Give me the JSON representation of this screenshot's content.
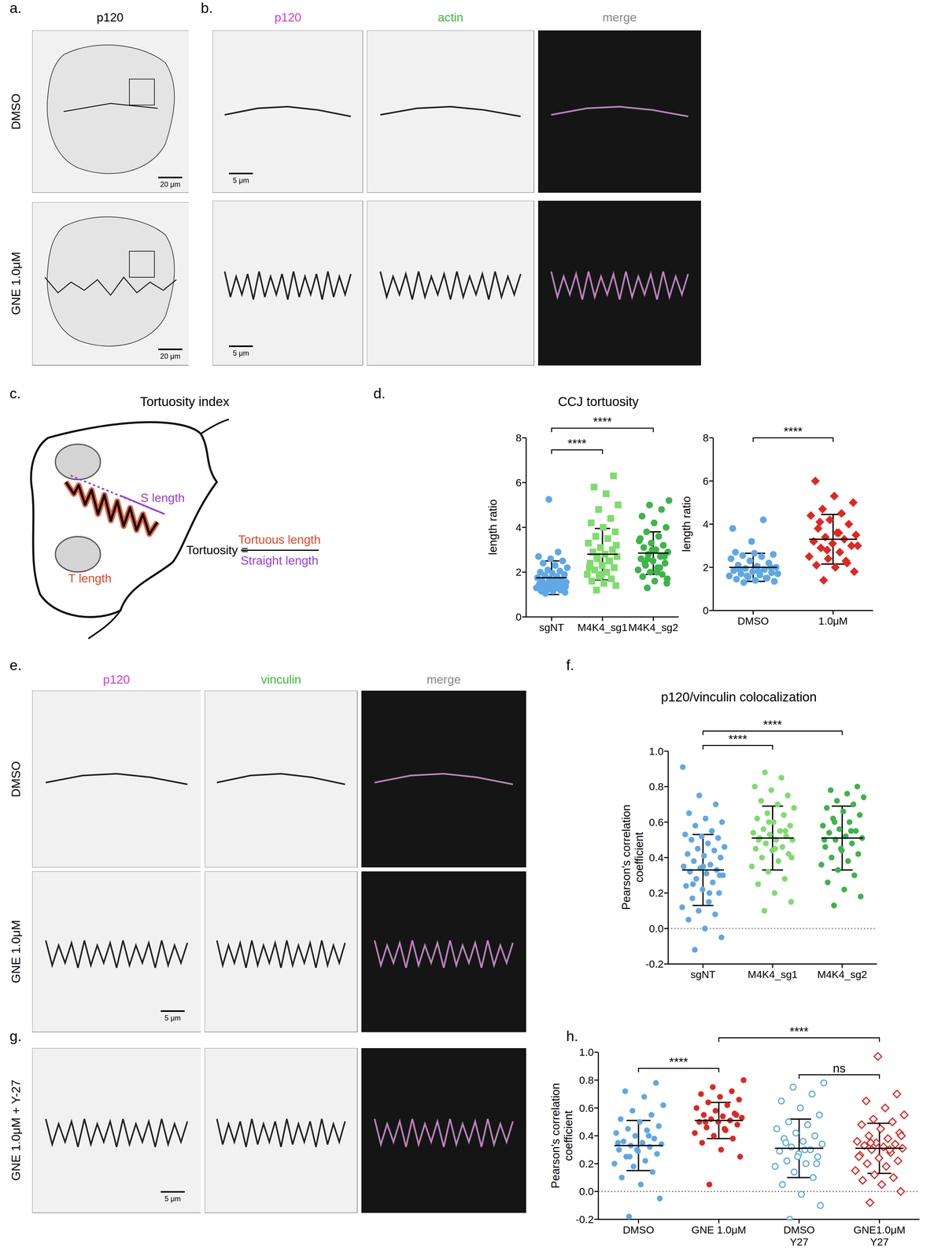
{
  "figure": {
    "panel_labels": [
      "a.",
      "b.",
      "c.",
      "d.",
      "e.",
      "f.",
      "g.",
      "h."
    ],
    "a": {
      "title": "p120",
      "rows": [
        "DMSO",
        "GNE 1.0μM"
      ],
      "scale_bar": "20 μm"
    },
    "b": {
      "columns": [
        {
          "label": "p120",
          "color": "#d63bd6"
        },
        {
          "label": "actin",
          "color": "#3dbb3d"
        },
        {
          "label": "merge",
          "color": "#888888"
        }
      ],
      "scale_bar": "5 μm"
    },
    "c": {
      "title": "Tortuosity index",
      "s_label": "S length",
      "t_label": "T length",
      "lhs": "Tortuosity =",
      "numerator": "Tortuous length",
      "denominator": "Straight length"
    },
    "d": {
      "title": "CCJ tortuosity"
    },
    "e": {
      "columns": [
        {
          "label": "p120",
          "color": "#d63bd6"
        },
        {
          "label": "vinculin",
          "color": "#3dbb3d"
        },
        {
          "label": "merge",
          "color": "#888888"
        }
      ],
      "rows": [
        "DMSO",
        "GNE 1.0μM"
      ],
      "scale_bar": "5 μm"
    },
    "f": {
      "title": "p120/vinculin colocalization"
    },
    "g": {
      "row": "GNE 1.0μM + Y-27",
      "scale_bar": "5 μm"
    }
  },
  "chart_data": [
    {
      "type": "scatter",
      "y_label": "length ratio",
      "categories": [
        "sgNT",
        "M4K4_sg1",
        "M4K4_sg2"
      ],
      "ylim": [
        0,
        8
      ],
      "yticks": [
        0,
        2,
        4,
        6,
        8
      ],
      "groups": [
        {
          "color": "#5fa8e6",
          "marker": "circle",
          "values": [
            1.05,
            1.1,
            1.15,
            1.2,
            1.2,
            1.25,
            1.3,
            1.3,
            1.35,
            1.4,
            1.4,
            1.45,
            1.5,
            1.5,
            1.55,
            1.6,
            1.6,
            1.65,
            1.7,
            1.75,
            1.8,
            1.85,
            1.9,
            1.95,
            2.0,
            2.05,
            2.1,
            2.2,
            2.3,
            2.4,
            2.5,
            2.6,
            2.7,
            2.9,
            1.25,
            1.35,
            1.45,
            1.15,
            1.55,
            5.25
          ],
          "mean": 1.75,
          "sd": 0.75
        },
        {
          "color": "#7fdc6e",
          "marker": "square",
          "values": [
            1.2,
            1.4,
            1.5,
            1.6,
            1.7,
            1.8,
            1.9,
            2.0,
            2.1,
            2.2,
            2.3,
            2.4,
            2.5,
            2.6,
            2.7,
            2.8,
            2.9,
            3.0,
            3.1,
            3.3,
            3.5,
            3.6,
            3.8,
            4.0,
            4.2,
            4.4,
            4.8,
            5.0,
            5.5,
            5.8,
            6.3,
            1.9,
            2.2,
            2.5,
            2.7,
            3.2
          ],
          "mean": 2.8,
          "sd": 1.15
        },
        {
          "color": "#3cb54a",
          "marker": "circle",
          "values": [
            1.3,
            1.5,
            1.6,
            1.8,
            1.9,
            2.0,
            2.1,
            2.2,
            2.3,
            2.4,
            2.5,
            2.6,
            2.7,
            2.8,
            2.9,
            3.0,
            3.1,
            3.2,
            3.3,
            3.4,
            3.6,
            3.8,
            4.0,
            4.2,
            4.5,
            4.8,
            5.0,
            5.2,
            2.0,
            2.4,
            2.7,
            3.0,
            3.5,
            2.2,
            2.6,
            1.7
          ],
          "mean": 2.85,
          "sd": 0.95
        }
      ],
      "comparisons": [
        {
          "from": 0,
          "to": 1,
          "label": "****"
        },
        {
          "from": 0,
          "to": 2,
          "label": "****"
        }
      ]
    },
    {
      "type": "scatter",
      "y_label": "length ratio",
      "categories": [
        "DMSO",
        "1.0μM"
      ],
      "ylim": [
        0,
        8
      ],
      "yticks": [
        0,
        2,
        4,
        6,
        8
      ],
      "groups": [
        {
          "color": "#5fa8e6",
          "marker": "circle",
          "values": [
            1.3,
            1.35,
            1.4,
            1.45,
            1.5,
            1.55,
            1.6,
            1.65,
            1.7,
            1.75,
            1.8,
            1.85,
            1.9,
            1.95,
            2.0,
            2.05,
            2.1,
            2.2,
            2.3,
            2.4,
            2.5,
            2.55,
            2.6,
            2.65,
            2.7,
            1.5,
            1.6,
            1.7,
            1.8,
            1.9,
            2.0,
            3.2,
            3.8,
            4.2
          ],
          "mean": 2.0,
          "sd": 0.65
        },
        {
          "color": "#e3261f",
          "marker": "diamond",
          "values": [
            1.4,
            1.8,
            2.0,
            2.1,
            2.2,
            2.4,
            2.5,
            2.7,
            2.9,
            3.0,
            3.1,
            3.2,
            3.3,
            3.4,
            3.5,
            3.6,
            3.8,
            4.0,
            4.2,
            4.4,
            4.5,
            4.7,
            5.0,
            5.3,
            6.0,
            2.3,
            2.8,
            3.0,
            3.6,
            4.1
          ],
          "mean": 3.3,
          "sd": 1.15
        }
      ],
      "comparisons": [
        {
          "from": 0,
          "to": 1,
          "label": "****"
        }
      ]
    },
    {
      "type": "scatter",
      "y_label": "Pearson's correlation\ncoefficient",
      "categories": [
        "sgNT",
        "M4K4_sg1",
        "M4K4_sg2"
      ],
      "ylim": [
        -0.2,
        1.0
      ],
      "yticks": [
        -0.2,
        {
          "value": 0,
          "label": "0.0"
        },
        0.2,
        0.4,
        0.6,
        0.8,
        {
          "value": 1,
          "label": "1.0"
        }
      ],
      "reference_lines": [
        {
          "y": 0,
          "line_style": "dotted"
        }
      ],
      "groups": [
        {
          "color": "#5fa8e6",
          "marker": "circle",
          "values": [
            -0.12,
            -0.05,
            0.0,
            0.05,
            0.08,
            0.1,
            0.12,
            0.15,
            0.17,
            0.2,
            0.22,
            0.24,
            0.26,
            0.28,
            0.3,
            0.31,
            0.32,
            0.33,
            0.34,
            0.35,
            0.36,
            0.38,
            0.4,
            0.41,
            0.42,
            0.44,
            0.45,
            0.46,
            0.48,
            0.5,
            0.51,
            0.52,
            0.53,
            0.55,
            0.58,
            0.6,
            0.62,
            0.65,
            0.7,
            0.75,
            0.91,
            0.2,
            0.25,
            0.3,
            0.35
          ],
          "mean": 0.33,
          "sd": 0.2
        },
        {
          "color": "#7fdc6e",
          "marker": "circle",
          "values": [
            0.1,
            0.15,
            0.2,
            0.25,
            0.28,
            0.32,
            0.35,
            0.38,
            0.4,
            0.42,
            0.44,
            0.45,
            0.46,
            0.48,
            0.5,
            0.5,
            0.51,
            0.52,
            0.53,
            0.54,
            0.55,
            0.56,
            0.58,
            0.6,
            0.62,
            0.64,
            0.65,
            0.68,
            0.7,
            0.72,
            0.75,
            0.78,
            0.8,
            0.85,
            0.88,
            0.4,
            0.45,
            0.5,
            0.55,
            0.6
          ],
          "mean": 0.51,
          "sd": 0.18
        },
        {
          "color": "#3cb54a",
          "marker": "circle",
          "values": [
            0.13,
            0.18,
            0.22,
            0.26,
            0.3,
            0.33,
            0.36,
            0.38,
            0.4,
            0.42,
            0.44,
            0.46,
            0.48,
            0.5,
            0.51,
            0.52,
            0.54,
            0.55,
            0.56,
            0.58,
            0.6,
            0.62,
            0.64,
            0.66,
            0.68,
            0.7,
            0.72,
            0.74,
            0.76,
            0.78,
            0.8,
            0.45,
            0.5,
            0.55,
            0.6
          ],
          "mean": 0.51,
          "sd": 0.18
        }
      ],
      "comparisons": [
        {
          "from": 0,
          "to": 1,
          "label": "****"
        },
        {
          "from": 0,
          "to": 2,
          "label": "****"
        }
      ]
    },
    {
      "type": "scatter",
      "y_label": "Pearson's correlation\ncoefficient",
      "categories": [
        "DMSO",
        "GNE 1.0μM",
        "DMSO\nY27",
        "GNE1.0μM\nY27"
      ],
      "ylim": [
        -0.2,
        1.0
      ],
      "yticks": [
        -0.2,
        {
          "value": 0,
          "label": "0.0"
        },
        0.2,
        0.4,
        0.6,
        0.8,
        {
          "value": 1,
          "label": "1.0"
        }
      ],
      "reference_lines": [
        {
          "y": 0,
          "line_style": "dotted"
        }
      ],
      "groups": [
        {
          "color": "#5fa8e6",
          "marker": "circle",
          "values": [
            -0.18,
            -0.05,
            0.05,
            0.1,
            0.14,
            0.18,
            0.2,
            0.22,
            0.25,
            0.27,
            0.29,
            0.3,
            0.32,
            0.33,
            0.34,
            0.35,
            0.36,
            0.38,
            0.4,
            0.42,
            0.44,
            0.45,
            0.47,
            0.5,
            0.52,
            0.55,
            0.58,
            0.62,
            0.68,
            0.72,
            0.78,
            0.3,
            0.35,
            0.4,
            0.25
          ],
          "mean": 0.33,
          "sd": 0.18
        },
        {
          "color": "#e3261f",
          "marker": "circle",
          "values": [
            0.05,
            0.25,
            0.3,
            0.35,
            0.38,
            0.4,
            0.42,
            0.44,
            0.46,
            0.48,
            0.5,
            0.5,
            0.51,
            0.52,
            0.53,
            0.54,
            0.55,
            0.56,
            0.58,
            0.6,
            0.62,
            0.64,
            0.66,
            0.68,
            0.7,
            0.72,
            0.75,
            0.8,
            0.45,
            0.5,
            0.55
          ],
          "mean": 0.51,
          "sd": 0.13
        },
        {
          "color": "#5fa8e6",
          "marker": "circle_open",
          "values": [
            -0.2,
            -0.1,
            -0.02,
            0.05,
            0.1,
            0.14,
            0.18,
            0.2,
            0.22,
            0.25,
            0.27,
            0.29,
            0.3,
            0.32,
            0.34,
            0.36,
            0.38,
            0.4,
            0.42,
            0.45,
            0.48,
            0.5,
            0.55,
            0.6,
            0.65,
            0.7,
            0.75,
            0.78,
            0.3,
            0.35,
            0.2,
            0.25
          ],
          "mean": 0.31,
          "sd": 0.21
        },
        {
          "color": "#e3261f",
          "marker": "diamond_open",
          "values": [
            -0.08,
            0.0,
            0.05,
            0.08,
            0.1,
            0.12,
            0.15,
            0.18,
            0.2,
            0.22,
            0.24,
            0.26,
            0.28,
            0.3,
            0.31,
            0.32,
            0.33,
            0.34,
            0.35,
            0.36,
            0.38,
            0.4,
            0.42,
            0.45,
            0.48,
            0.5,
            0.52,
            0.55,
            0.6,
            0.65,
            0.7,
            0.97,
            0.25,
            0.3,
            0.35,
            0.4
          ],
          "mean": 0.31,
          "sd": 0.18
        }
      ],
      "comparisons": [
        {
          "from": 0,
          "to": 1,
          "label": "****"
        },
        {
          "from": 1,
          "to": 3,
          "label": "****"
        },
        {
          "from": 2,
          "to": 3,
          "label": "ns"
        }
      ]
    }
  ]
}
